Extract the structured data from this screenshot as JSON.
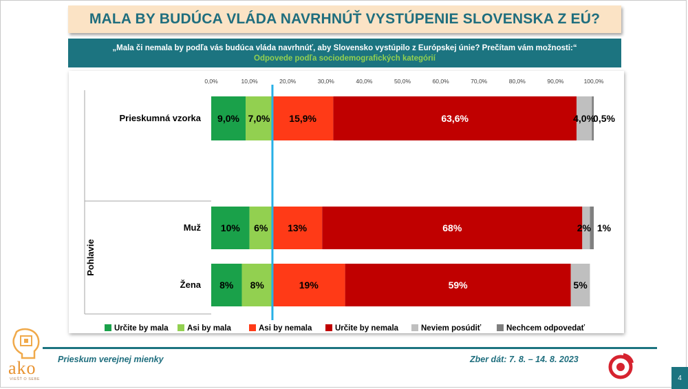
{
  "title": "MALA BY BUDÚCA VLÁDA NAVRHNÚŤ VYSTÚPENIE SLOVENSKA Z EÚ?",
  "question": "„Mala či nemala by podľa vás budúca vláda navrhnúť, aby Slovensko vystúpilo z Európskej únie? Prečítam vám možnosti:“",
  "subtitle": "Odpovede podľa sociodemografických kategórií",
  "footer": {
    "left": "Prieskum verejnej mienky",
    "right": "Zber dát: 7. 8. – 14. 8. 2023",
    "page": "4"
  },
  "logo": {
    "text": "ako",
    "tagline": "VIEŠŤ O SEBE",
    "lines": []
  },
  "chart_data": {
    "type": "bar",
    "orientation": "horizontal-stacked",
    "xlim": [
      0,
      100
    ],
    "ticks": [
      "0,0%",
      "10,0%",
      "20,0%",
      "30,0%",
      "40,0%",
      "50,0%",
      "60,0%",
      "70,0%",
      "80,0%",
      "90,0%",
      "100,0%"
    ],
    "reference_line": 16,
    "group_label": "Pohlavie",
    "legend_position": "bottom",
    "series": [
      {
        "name": "Určite by mala",
        "color": "#1aa14a"
      },
      {
        "name": "Asi by mala",
        "color": "#92d050"
      },
      {
        "name": "Asi by nemala",
        "color": "#ff3a17"
      },
      {
        "name": "Určite by nemala",
        "color": "#c00000"
      },
      {
        "name": "Neviem posúdiť",
        "color": "#bfbfbf"
      },
      {
        "name": "Nechcem odpovedať",
        "color": "#7f7f7f"
      }
    ],
    "rows": [
      {
        "category": "Prieskumná vzorka",
        "values": [
          9.0,
          7.0,
          15.9,
          63.6,
          4.0,
          0.5
        ],
        "labels": [
          "9,0%",
          "7,0%",
          "15,9%",
          "63,6%",
          "4,0%",
          "0,5%"
        ]
      },
      {
        "category": "Muž",
        "values": [
          10,
          6,
          13,
          68,
          2,
          1
        ],
        "labels": [
          "10%",
          "6%",
          "13%",
          "68%",
          "2%",
          "1%"
        ]
      },
      {
        "category": "Žena",
        "values": [
          8,
          8,
          19,
          59,
          5,
          0
        ],
        "labels": [
          "8%",
          "8%",
          "19%",
          "59%",
          "5%",
          ""
        ]
      }
    ]
  }
}
